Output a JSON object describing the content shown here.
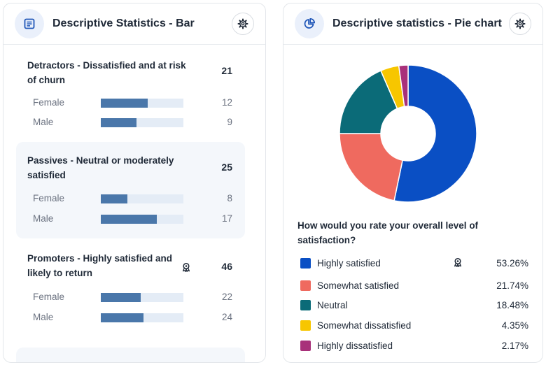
{
  "bar_card": {
    "title": "Descriptive Statistics - Bar",
    "groups": [
      {
        "title": "Detractors - Dissatisfied and at risk of churn",
        "total": "21",
        "highlighted": false,
        "award": false,
        "rows": [
          {
            "label": "Female",
            "value": "12",
            "fraction": 0.57
          },
          {
            "label": "Male",
            "value": "9",
            "fraction": 0.43
          }
        ]
      },
      {
        "title": "Passives - Neutral or moderately satisfied",
        "total": "25",
        "highlighted": true,
        "award": false,
        "rows": [
          {
            "label": "Female",
            "value": "8",
            "fraction": 0.32
          },
          {
            "label": "Male",
            "value": "17",
            "fraction": 0.68
          }
        ]
      },
      {
        "title": "Promoters - Highly satisfied and likely to return",
        "total": "46",
        "highlighted": false,
        "award": true,
        "rows": [
          {
            "label": "Female",
            "value": "22",
            "fraction": 0.48
          },
          {
            "label": "Male",
            "value": "24",
            "fraction": 0.52
          }
        ]
      }
    ]
  },
  "pie_card": {
    "title": "Descriptive statistics - Pie chart",
    "question": "How would you rate your overall level of satisfaction?"
  },
  "chart_data": {
    "type": "pie",
    "title": "How would you rate your overall level of satisfaction?",
    "donut": true,
    "slices": [
      {
        "label": "Highly satisfied",
        "pct_label": "53.26%",
        "value": 53.26,
        "color": "#0a4fc4",
        "award": true
      },
      {
        "label": "Somewhat satisfied",
        "pct_label": "21.74%",
        "value": 21.74,
        "color": "#ef6a5f",
        "award": false
      },
      {
        "label": "Neutral",
        "pct_label": "18.48%",
        "value": 18.48,
        "color": "#0b6b78",
        "award": false
      },
      {
        "label": "Somewhat dissatisfied",
        "pct_label": "4.35%",
        "value": 4.35,
        "color": "#f7c600",
        "award": false
      },
      {
        "label": "Highly dissatisfied",
        "pct_label": "2.17%",
        "value": 2.17,
        "color": "#a8317a",
        "award": false
      }
    ]
  }
}
